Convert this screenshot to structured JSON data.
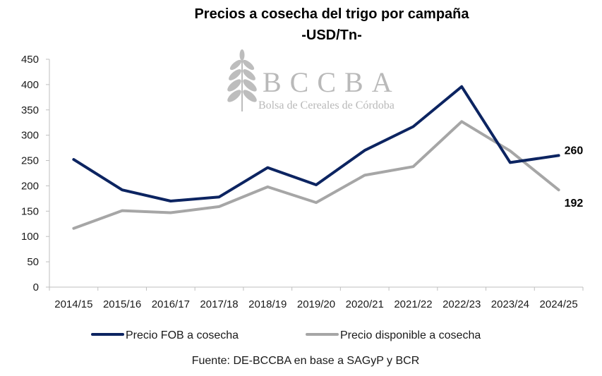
{
  "chart_data": {
    "type": "line",
    "title": "Precios a cosecha del trigo por campaña",
    "subtitle": "-USD/Tn-",
    "xlabel": "",
    "ylabel": "",
    "categories": [
      "2014/15",
      "2015/16",
      "2016/17",
      "2017/18",
      "2018/19",
      "2019/20",
      "2020/21",
      "2021/22",
      "2022/23",
      "2023/24",
      "2024/25"
    ],
    "ylim": [
      0,
      450
    ],
    "yticks": [
      0,
      50,
      100,
      150,
      200,
      250,
      300,
      350,
      400,
      450
    ],
    "grid": false,
    "legend_position": "bottom",
    "series": [
      {
        "name": "Precio FOB a cosecha",
        "color": "#0c2461",
        "values": [
          252,
          192,
          170,
          178,
          236,
          202,
          270,
          317,
          396,
          246,
          260
        ],
        "end_label": "260"
      },
      {
        "name": "Precio disponible a cosecha",
        "color": "#a6a6a6",
        "values": [
          116,
          151,
          147,
          159,
          198,
          167,
          221,
          238,
          327,
          269,
          192
        ],
        "end_label": "192"
      }
    ],
    "source": "Fuente: DE-BCCBA en base a SAGyP y BCR"
  },
  "watermark": {
    "brand": "BCCBA",
    "name": "Bolsa de Cereales de Córdoba",
    "icon": "wheat-icon"
  }
}
